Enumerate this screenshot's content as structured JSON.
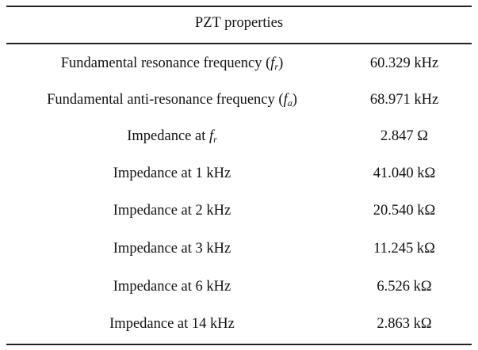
{
  "table": {
    "header": "PZT properties",
    "rows": [
      {
        "label": "Fundamental resonance frequency (",
        "sym": "f",
        "sub": "r",
        "tail": ")",
        "value": "60.329 kHz"
      },
      {
        "label": "Fundamental anti-resonance frequency (",
        "sym": "f",
        "sub": "a",
        "tail": ")",
        "value": "68.971 kHz"
      },
      {
        "label": "Impedance at ",
        "sym": "f",
        "sub": "r",
        "tail": "",
        "value": "2.847 Ω"
      },
      {
        "label": "Impedance at 1 kHz",
        "value": "41.040 kΩ"
      },
      {
        "label": "Impedance at 2 kHz",
        "value": "20.540 kΩ"
      },
      {
        "label": "Impedance at 3 kHz",
        "value": "11.245 kΩ"
      },
      {
        "label": "Impedance at 6 kHz",
        "value": "6.526 kΩ"
      },
      {
        "label": "Impedance at 14 kHz",
        "value": "2.863 kΩ"
      }
    ]
  }
}
